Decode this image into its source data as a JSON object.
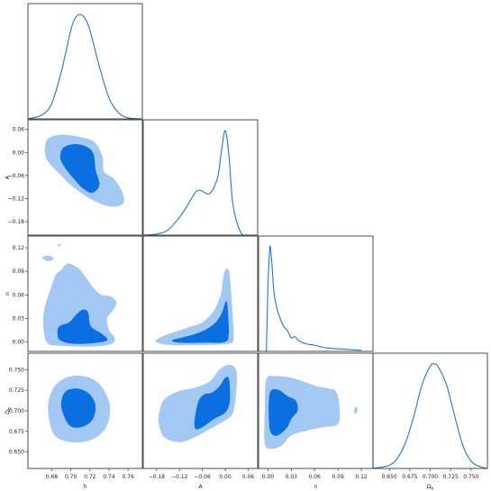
{
  "chart_data": {
    "type": "triangle",
    "colors": {
      "outer_contour": "#a3c8f4",
      "inner_contour": "#0a6fe0",
      "line": "#1f78d4"
    },
    "parameters": [
      {
        "key": "h",
        "label": "h",
        "range": [
          0.655,
          0.775
        ],
        "ticks": [
          0.68,
          0.7,
          0.72,
          0.74,
          0.76
        ],
        "tick_labels": [
          "0.68",
          "0.70",
          "0.72",
          "0.74",
          "0.76"
        ]
      },
      {
        "key": "A",
        "label": "A",
        "range": [
          -0.215,
          0.085
        ],
        "ticks": [
          -0.18,
          -0.12,
          -0.06,
          0.0,
          0.06
        ],
        "tick_labels": [
          "−0.18",
          "−0.12",
          "−0.06",
          "0.00",
          "0.06"
        ]
      },
      {
        "key": "n",
        "label": "n",
        "range": [
          -0.012,
          0.135
        ],
        "ticks": [
          0.0,
          0.03,
          0.06,
          0.09,
          0.12
        ],
        "tick_labels": [
          "0.00",
          "0.03",
          "0.06",
          "0.09",
          "0.12"
        ]
      },
      {
        "key": "Omega_b",
        "label": "Ωb",
        "label_main": "Ω",
        "label_sub": "b",
        "range": [
          0.63,
          0.77
        ],
        "ticks": [
          0.65,
          0.675,
          0.7,
          0.725,
          0.75
        ],
        "tick_labels": [
          "0.650",
          "0.675",
          "0.700",
          "0.725",
          "0.750"
        ]
      }
    ],
    "marginals": [
      {
        "param": "h",
        "x": [
          0.655,
          0.67,
          0.68,
          0.69,
          0.7,
          0.705,
          0.71,
          0.715,
          0.72,
          0.73,
          0.74,
          0.75,
          0.76,
          0.775
        ],
        "y": [
          0.0,
          0.04,
          0.15,
          0.45,
          0.85,
          0.97,
          1.0,
          0.96,
          0.85,
          0.5,
          0.2,
          0.06,
          0.01,
          0.0
        ]
      },
      {
        "param": "A",
        "x": [
          -0.215,
          -0.18,
          -0.15,
          -0.12,
          -0.1,
          -0.08,
          -0.07,
          -0.06,
          -0.04,
          -0.02,
          -0.01,
          0.0,
          0.01,
          0.02,
          0.04,
          0.06,
          0.085
        ],
        "y": [
          0.0,
          0.01,
          0.05,
          0.17,
          0.28,
          0.4,
          0.43,
          0.42,
          0.4,
          0.55,
          0.8,
          1.0,
          0.75,
          0.3,
          0.03,
          0.0,
          0.0
        ]
      },
      {
        "param": "n",
        "x": [
          -0.002,
          0.0,
          0.002,
          0.003,
          0.005,
          0.008,
          0.012,
          0.015,
          0.02,
          0.025,
          0.03,
          0.035,
          0.04,
          0.05,
          0.06,
          0.07,
          0.08,
          0.1,
          0.12
        ],
        "y": [
          0.0,
          0.6,
          0.95,
          1.0,
          0.85,
          0.55,
          0.4,
          0.33,
          0.24,
          0.2,
          0.13,
          0.14,
          0.1,
          0.07,
          0.06,
          0.04,
          0.03,
          0.02,
          0.01
        ]
      },
      {
        "param": "Omega_b",
        "x": [
          0.63,
          0.65,
          0.66,
          0.67,
          0.68,
          0.69,
          0.7,
          0.705,
          0.71,
          0.72,
          0.73,
          0.74,
          0.75,
          0.76,
          0.77
        ],
        "y": [
          0.0,
          0.03,
          0.1,
          0.25,
          0.5,
          0.8,
          0.98,
          1.0,
          0.97,
          0.8,
          0.5,
          0.22,
          0.07,
          0.02,
          0.0
        ]
      }
    ],
    "contours": [
      {
        "x": "h",
        "y": "A",
        "outer": [
          [
            0.676,
            0.036
          ],
          [
            0.69,
            0.046
          ],
          [
            0.71,
            0.04
          ],
          [
            0.725,
            0.027
          ],
          [
            0.733,
            -0.01
          ],
          [
            0.735,
            -0.05
          ],
          [
            0.746,
            -0.07
          ],
          [
            0.755,
            -0.11
          ],
          [
            0.754,
            -0.135
          ],
          [
            0.74,
            -0.14
          ],
          [
            0.72,
            -0.12
          ],
          [
            0.7,
            -0.085
          ],
          [
            0.69,
            -0.06
          ],
          [
            0.68,
            -0.035
          ],
          [
            0.674,
            -0.015
          ],
          [
            0.673,
            0.012
          ]
        ],
        "inner": [
          [
            0.692,
            0.012
          ],
          [
            0.705,
            0.022
          ],
          [
            0.718,
            0.013
          ],
          [
            0.724,
            -0.005
          ],
          [
            0.726,
            -0.045
          ],
          [
            0.73,
            -0.085
          ],
          [
            0.722,
            -0.105
          ],
          [
            0.712,
            -0.092
          ],
          [
            0.702,
            -0.065
          ],
          [
            0.694,
            -0.04
          ],
          [
            0.689,
            -0.015
          ]
        ]
      },
      {
        "x": "h",
        "y": "n",
        "outer": [
          [
            0.673,
            0.046
          ],
          [
            0.678,
            0.065
          ],
          [
            0.684,
            0.085
          ],
          [
            0.69,
            0.092
          ],
          [
            0.697,
            0.1
          ],
          [
            0.708,
            0.094
          ],
          [
            0.716,
            0.082
          ],
          [
            0.723,
            0.07
          ],
          [
            0.732,
            0.06
          ],
          [
            0.742,
            0.058
          ],
          [
            0.748,
            0.05
          ],
          [
            0.744,
            0.04
          ],
          [
            0.738,
            0.03
          ],
          [
            0.74,
            0.015
          ],
          [
            0.746,
            0.005
          ],
          [
            0.742,
            -0.003
          ],
          [
            0.72,
            -0.006
          ],
          [
            0.69,
            -0.005
          ],
          [
            0.676,
            -0.002
          ],
          [
            0.672,
            0.012
          ],
          [
            0.671,
            0.03
          ]
        ],
        "alt_islands": [
          [
            [
              0.67,
              0.108
            ],
            [
              0.677,
              0.11
            ],
            [
              0.682,
              0.106
            ],
            [
              0.676,
              0.103
            ]
          ],
          [
            [
              0.686,
              0.124
            ],
            [
              0.69,
              0.125
            ],
            [
              0.688,
              0.122
            ]
          ]
        ],
        "inner": [
          [
            0.688,
            0.02
          ],
          [
            0.698,
            0.025
          ],
          [
            0.705,
            0.034
          ],
          [
            0.712,
            0.041
          ],
          [
            0.718,
            0.038
          ],
          [
            0.721,
            0.02
          ],
          [
            0.733,
            0.01
          ],
          [
            0.738,
            0.002
          ],
          [
            0.72,
            -0.002
          ],
          [
            0.7,
            -0.002
          ],
          [
            0.688,
            0.003
          ],
          [
            0.686,
            0.012
          ]
        ]
      },
      {
        "x": "A",
        "y": "n",
        "outer": [
          [
            -0.18,
            0.003
          ],
          [
            -0.15,
            0.01
          ],
          [
            -0.1,
            0.018
          ],
          [
            -0.06,
            0.025
          ],
          [
            -0.03,
            0.04
          ],
          [
            -0.012,
            0.06
          ],
          [
            -0.006,
            0.08
          ],
          [
            0.0,
            0.092
          ],
          [
            0.01,
            0.09
          ],
          [
            0.016,
            0.06
          ],
          [
            0.02,
            0.03
          ],
          [
            0.022,
            0.005
          ],
          [
            0.01,
            -0.002
          ],
          [
            -0.06,
            -0.004
          ],
          [
            -0.14,
            -0.004
          ],
          [
            -0.178,
            -0.001
          ]
        ],
        "inner": [
          [
            -0.14,
            0.002
          ],
          [
            -0.11,
            0.006
          ],
          [
            -0.08,
            0.01
          ],
          [
            -0.05,
            0.016
          ],
          [
            -0.025,
            0.025
          ],
          [
            -0.008,
            0.038
          ],
          [
            0.0,
            0.05
          ],
          [
            0.005,
            0.05
          ],
          [
            0.008,
            0.03
          ],
          [
            0.009,
            0.01
          ],
          [
            0.0,
            0.0
          ],
          [
            -0.05,
            -0.001
          ],
          [
            -0.12,
            -0.001
          ]
        ]
      },
      {
        "x": "A",
        "y": "Omega_b",
        "outer": [
          [
            -0.172,
            0.7
          ],
          [
            -0.16,
            0.714
          ],
          [
            -0.12,
            0.724
          ],
          [
            -0.08,
            0.728
          ],
          [
            -0.04,
            0.736
          ],
          [
            -0.015,
            0.75
          ],
          [
            0.01,
            0.756
          ],
          [
            0.028,
            0.75
          ],
          [
            0.03,
            0.73
          ],
          [
            0.022,
            0.7
          ],
          [
            0.005,
            0.69
          ],
          [
            -0.04,
            0.678
          ],
          [
            -0.08,
            0.668
          ],
          [
            -0.12,
            0.662
          ],
          [
            -0.16,
            0.668
          ],
          [
            -0.175,
            0.686
          ]
        ],
        "inner": [
          [
            -0.08,
            0.69
          ],
          [
            -0.07,
            0.712
          ],
          [
            -0.055,
            0.72
          ],
          [
            -0.035,
            0.722
          ],
          [
            -0.015,
            0.73
          ],
          [
            0.0,
            0.74
          ],
          [
            0.01,
            0.738
          ],
          [
            0.012,
            0.712
          ],
          [
            0.0,
            0.698
          ],
          [
            -0.03,
            0.69
          ],
          [
            -0.06,
            0.68
          ],
          [
            -0.078,
            0.678
          ]
        ]
      },
      {
        "x": "n",
        "y": "Omega_b",
        "outer": [
          [
            -0.004,
            0.66
          ],
          [
            -0.004,
            0.7
          ],
          [
            -0.002,
            0.738
          ],
          [
            0.01,
            0.742
          ],
          [
            0.03,
            0.74
          ],
          [
            0.05,
            0.734
          ],
          [
            0.062,
            0.73
          ],
          [
            0.078,
            0.727
          ],
          [
            0.088,
            0.723
          ],
          [
            0.092,
            0.704
          ],
          [
            0.09,
            0.684
          ],
          [
            0.07,
            0.68
          ],
          [
            0.05,
            0.676
          ],
          [
            0.03,
            0.67
          ],
          [
            0.018,
            0.658
          ],
          [
            0.005,
            0.654
          ]
        ],
        "alt_islands": [
          [
            [
              0.112,
              0.696
            ],
            [
              0.115,
              0.7
            ],
            [
              0.114,
              0.705
            ],
            [
              0.111,
              0.702
            ]
          ]
        ],
        "inner": [
          [
            0.002,
            0.68
          ],
          [
            0.002,
            0.72
          ],
          [
            0.012,
            0.726
          ],
          [
            0.025,
            0.718
          ],
          [
            0.036,
            0.712
          ],
          [
            0.038,
            0.7
          ],
          [
            0.03,
            0.69
          ],
          [
            0.025,
            0.68
          ],
          [
            0.016,
            0.672
          ],
          [
            0.008,
            0.67
          ]
        ]
      },
      {
        "x": "h",
        "y": "Omega_b",
        "outer": [
          [
            0.676,
            0.705
          ],
          [
            0.683,
            0.73
          ],
          [
            0.7,
            0.742
          ],
          [
            0.72,
            0.74
          ],
          [
            0.733,
            0.728
          ],
          [
            0.741,
            0.705
          ],
          [
            0.737,
            0.68
          ],
          [
            0.722,
            0.665
          ],
          [
            0.7,
            0.662
          ],
          [
            0.682,
            0.672
          ]
        ],
        "inner": [
          [
            0.69,
            0.705
          ],
          [
            0.694,
            0.723
          ],
          [
            0.707,
            0.727
          ],
          [
            0.72,
            0.72
          ],
          [
            0.726,
            0.705
          ],
          [
            0.722,
            0.688
          ],
          [
            0.71,
            0.68
          ],
          [
            0.698,
            0.683
          ]
        ]
      }
    ]
  }
}
